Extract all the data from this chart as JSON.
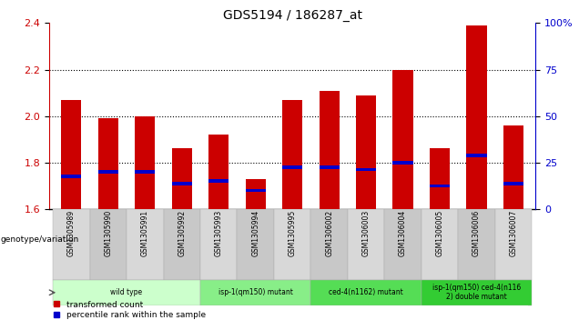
{
  "title": "GDS5194 / 186287_at",
  "samples": [
    "GSM1305989",
    "GSM1305990",
    "GSM1305991",
    "GSM1305992",
    "GSM1305993",
    "GSM1305994",
    "GSM1305995",
    "GSM1306002",
    "GSM1306003",
    "GSM1306004",
    "GSM1306005",
    "GSM1306006",
    "GSM1306007"
  ],
  "transformed_count": [
    2.07,
    1.99,
    2.0,
    1.86,
    1.92,
    1.73,
    2.07,
    2.11,
    2.09,
    2.2,
    1.86,
    2.39,
    1.96
  ],
  "percentile_rank": [
    1.74,
    1.76,
    1.76,
    1.71,
    1.72,
    1.68,
    1.78,
    1.78,
    1.77,
    1.8,
    1.7,
    1.83,
    1.71
  ],
  "ylim": [
    1.6,
    2.4
  ],
  "yticks": [
    1.6,
    1.8,
    2.0,
    2.2,
    2.4
  ],
  "right_yticks": [
    0,
    25,
    50,
    75,
    100
  ],
  "right_ytick_labels": [
    "0",
    "25",
    "50",
    "75",
    "100%"
  ],
  "bar_color": "#cc0000",
  "blue_color": "#0000cc",
  "bar_width": 0.55,
  "bg_color": "#ffffff",
  "plot_bg": "#ffffff",
  "groups": [
    {
      "label": "wild type",
      "start": 0,
      "end": 3,
      "color": "#ccffcc"
    },
    {
      "label": "isp-1(qm150) mutant",
      "start": 4,
      "end": 6,
      "color": "#88ee88"
    },
    {
      "label": "ced-4(n1162) mutant",
      "start": 7,
      "end": 9,
      "color": "#55dd55"
    },
    {
      "label": "isp-1(qm150) ced-4(n116\n2) double mutant",
      "start": 10,
      "end": 12,
      "color": "#33cc33"
    }
  ],
  "legend_items": [
    {
      "label": "transformed count",
      "color": "#cc0000"
    },
    {
      "label": "percentile rank within the sample",
      "color": "#0000cc"
    }
  ],
  "cell_colors": [
    "#d8d8d8",
    "#c8c8c8"
  ]
}
